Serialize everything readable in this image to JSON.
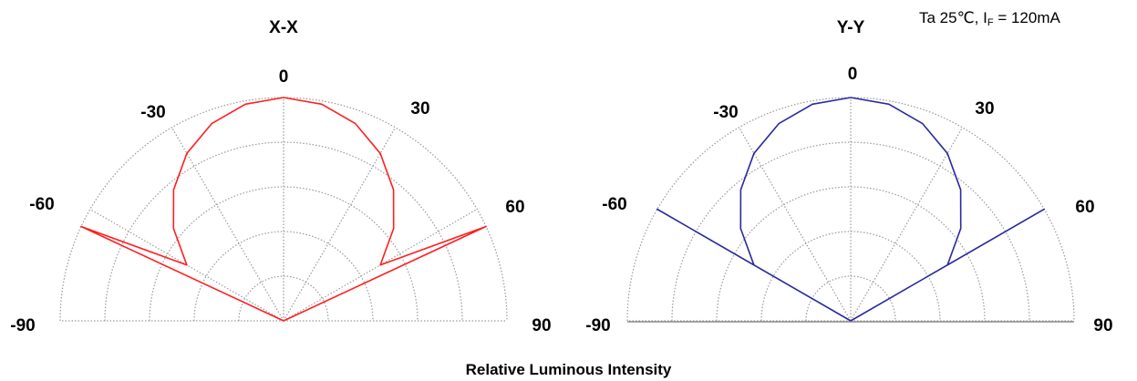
{
  "condition": {
    "prefix": "Ta 25℃, I",
    "subscript": "F",
    "suffix": " = 120mA"
  },
  "xlabel": "Relative Luminous Intensity",
  "chart_data": [
    {
      "type": "polar",
      "title": "X-X",
      "angle_labels": [
        "0",
        "30",
        "-30",
        "60",
        "-60",
        "90",
        "-90"
      ],
      "angle_range_deg": [
        -90,
        90
      ],
      "radial_range": [
        0,
        1
      ],
      "radial_grid": [
        0.2,
        0.4,
        0.6,
        0.8,
        1.0
      ],
      "grid": true,
      "series": [
        {
          "color": "#ff2020",
          "angles_deg": [
            -65,
            -60,
            -50,
            -40,
            -30,
            -20,
            -10,
            0,
            10,
            20,
            30,
            40,
            50,
            60,
            65
          ],
          "values": [
            1.0,
            0.5,
            0.643,
            0.766,
            0.866,
            0.94,
            0.985,
            1.0,
            0.985,
            0.94,
            0.866,
            0.766,
            0.643,
            0.5,
            1.0
          ]
        }
      ]
    },
    {
      "type": "polar",
      "title": "Y-Y",
      "angle_labels": [
        "0",
        "30",
        "-30",
        "60",
        "-60",
        "90",
        "-90"
      ],
      "angle_range_deg": [
        -90,
        90
      ],
      "radial_range": [
        0,
        1
      ],
      "radial_grid": [
        0.2,
        0.4,
        0.6,
        0.8,
        1.0
      ],
      "grid": true,
      "series": [
        {
          "color": "#2a2aa0",
          "angles_deg": [
            -60,
            -60,
            -50,
            -40,
            -30,
            -20,
            -10,
            0,
            10,
            20,
            30,
            40,
            50,
            60,
            60
          ],
          "values": [
            1.0,
            0.5,
            0.643,
            0.766,
            0.866,
            0.94,
            0.985,
            1.0,
            0.985,
            0.94,
            0.866,
            0.766,
            0.643,
            0.5,
            1.0
          ]
        }
      ]
    }
  ]
}
